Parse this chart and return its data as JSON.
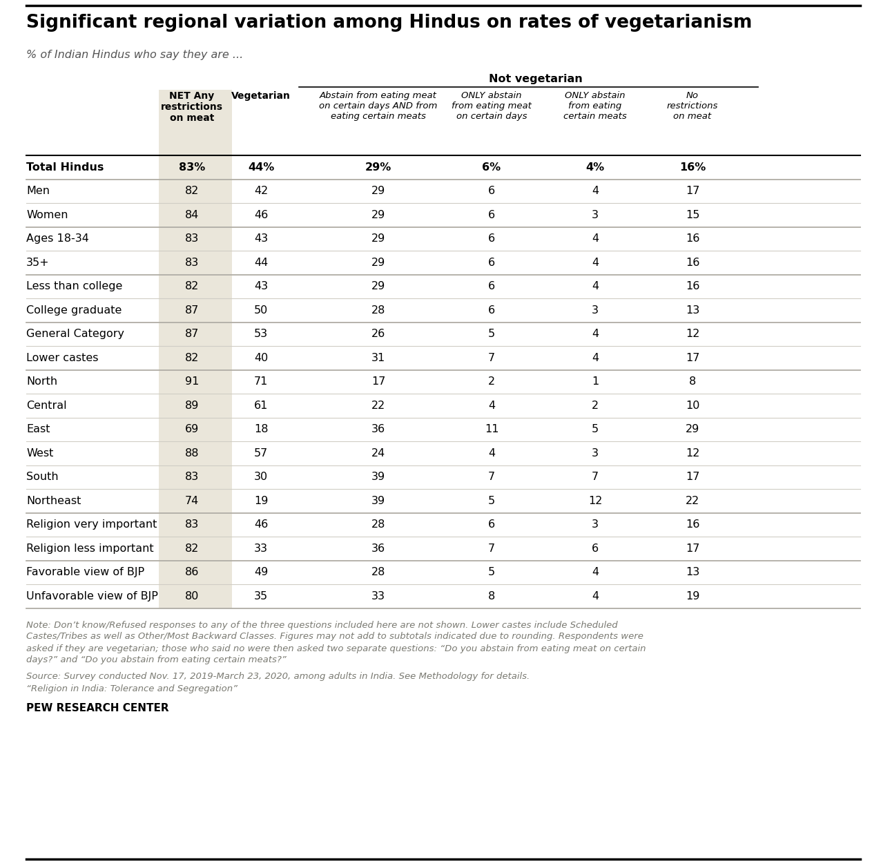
{
  "title": "Significant regional variation among Hindus on rates of vegetarianism",
  "subtitle": "% of Indian Hindus who say they are ...",
  "col_headers": [
    "NET Any\nrestrictions\non meat",
    "Vegetarian",
    "Abstain from eating meat\non certain days AND from\neating certain meats",
    "ONLY abstain\nfrom eating meat\non certain days",
    "ONLY abstain\nfrom eating\ncertain meats",
    "No\nrestrictions\non meat"
  ],
  "not_vegetarian_label": "Not vegetarian",
  "rows": [
    {
      "label": "Total Hindus",
      "values": [
        "83%",
        "44%",
        "29%",
        "6%",
        "4%",
        "16%"
      ],
      "bold": true,
      "group_sep_above": false
    },
    {
      "label": "Men",
      "values": [
        "82",
        "42",
        "29",
        "6",
        "4",
        "17"
      ],
      "bold": false,
      "group_sep_above": true
    },
    {
      "label": "Women",
      "values": [
        "84",
        "46",
        "29",
        "6",
        "3",
        "15"
      ],
      "bold": false,
      "group_sep_above": false
    },
    {
      "label": "Ages 18-34",
      "values": [
        "83",
        "43",
        "29",
        "6",
        "4",
        "16"
      ],
      "bold": false,
      "group_sep_above": true
    },
    {
      "label": "35+",
      "values": [
        "83",
        "44",
        "29",
        "6",
        "4",
        "16"
      ],
      "bold": false,
      "group_sep_above": false
    },
    {
      "label": "Less than college",
      "values": [
        "82",
        "43",
        "29",
        "6",
        "4",
        "16"
      ],
      "bold": false,
      "group_sep_above": true
    },
    {
      "label": "College graduate",
      "values": [
        "87",
        "50",
        "28",
        "6",
        "3",
        "13"
      ],
      "bold": false,
      "group_sep_above": false
    },
    {
      "label": "General Category",
      "values": [
        "87",
        "53",
        "26",
        "5",
        "4",
        "12"
      ],
      "bold": false,
      "group_sep_above": true
    },
    {
      "label": "Lower castes",
      "values": [
        "82",
        "40",
        "31",
        "7",
        "4",
        "17"
      ],
      "bold": false,
      "group_sep_above": false
    },
    {
      "label": "North",
      "values": [
        "91",
        "71",
        "17",
        "2",
        "1",
        "8"
      ],
      "bold": false,
      "group_sep_above": true
    },
    {
      "label": "Central",
      "values": [
        "89",
        "61",
        "22",
        "4",
        "2",
        "10"
      ],
      "bold": false,
      "group_sep_above": false
    },
    {
      "label": "East",
      "values": [
        "69",
        "18",
        "36",
        "11",
        "5",
        "29"
      ],
      "bold": false,
      "group_sep_above": false
    },
    {
      "label": "West",
      "values": [
        "88",
        "57",
        "24",
        "4",
        "3",
        "12"
      ],
      "bold": false,
      "group_sep_above": false
    },
    {
      "label": "South",
      "values": [
        "83",
        "30",
        "39",
        "7",
        "7",
        "17"
      ],
      "bold": false,
      "group_sep_above": false
    },
    {
      "label": "Northeast",
      "values": [
        "74",
        "19",
        "39",
        "5",
        "12",
        "22"
      ],
      "bold": false,
      "group_sep_above": false
    },
    {
      "label": "Religion very important",
      "values": [
        "83",
        "46",
        "28",
        "6",
        "3",
        "16"
      ],
      "bold": false,
      "group_sep_above": true
    },
    {
      "label": "Religion less important",
      "values": [
        "82",
        "33",
        "36",
        "7",
        "6",
        "17"
      ],
      "bold": false,
      "group_sep_above": false
    },
    {
      "label": "Favorable view of BJP",
      "values": [
        "86",
        "49",
        "28",
        "5",
        "4",
        "13"
      ],
      "bold": false,
      "group_sep_above": true
    },
    {
      "label": "Unfavorable view of BJP",
      "values": [
        "80",
        "35",
        "33",
        "8",
        "4",
        "19"
      ],
      "bold": false,
      "group_sep_above": false
    }
  ],
  "note_line1": "Note: Don’t know/Refused responses to any of the three questions included here are not shown. Lower castes include Scheduled",
  "note_line2": "Castes/Tribes as well as Other/Most Backward Classes. Figures may not add to subtotals indicated due to rounding. Respondents were",
  "note_line3": "asked if they are vegetarian; those who said no were then asked two separate questions: “Do you abstain from eating meat on certain",
  "note_line4": "days?” and “Do you abstain from eating certain meats?”",
  "source": "Source: Survey conducted Nov. 17, 2019-March 23, 2020, among adults in India. See Methodology for details.",
  "source2": "“Religion in India: Tolerance and Segregation”",
  "brand": "PEW RESEARCH CENTER",
  "col1_bg": "#eae6da",
  "group_sep_color": "#b0ada5",
  "thin_sep_color": "#d0cdc5",
  "note_color": "#7a7a72"
}
